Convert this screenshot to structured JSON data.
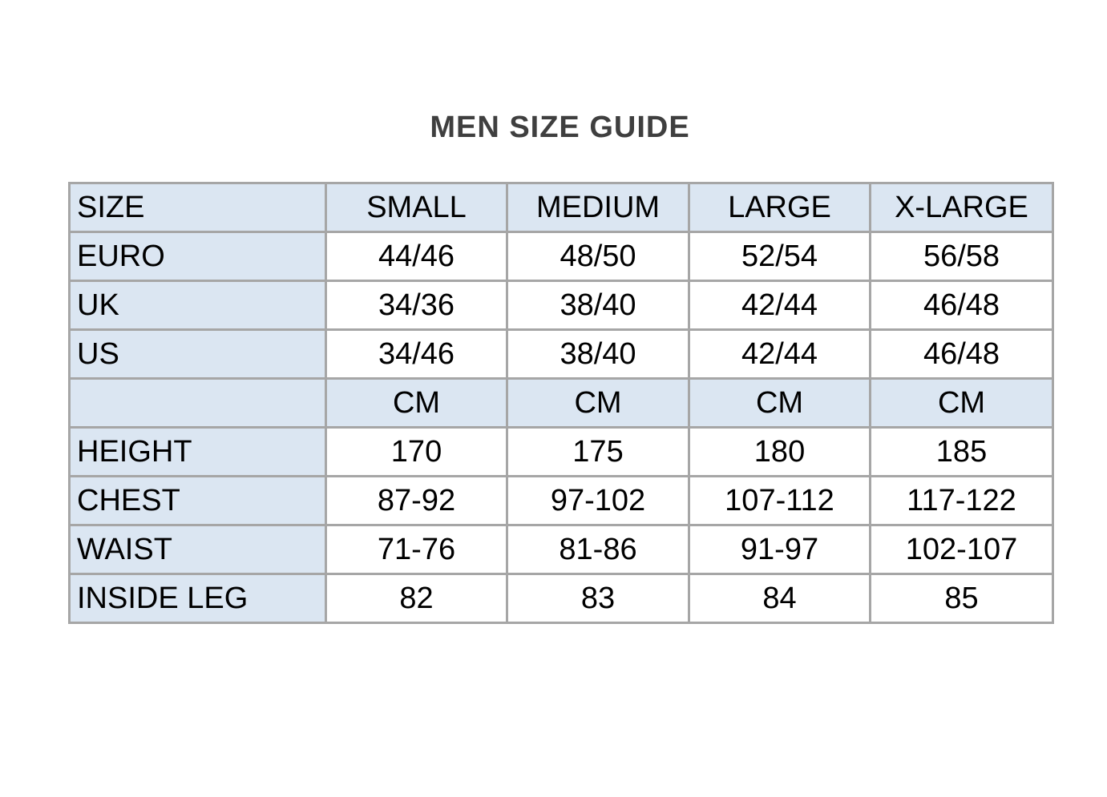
{
  "page": {
    "title": "MEN SIZE GUIDE"
  },
  "colors": {
    "header_fill": "#dbe6f2",
    "border": "#a6a6a6",
    "title_text": "#3f3f3f",
    "cell_text": "#000000",
    "background": "#ffffff"
  },
  "table": {
    "header": {
      "label": "SIZE",
      "cols": [
        "SMALL",
        "MEDIUM",
        "LARGE",
        "X-LARGE"
      ]
    },
    "rows": [
      {
        "label": "EURO",
        "kind": "data",
        "cells": [
          "44/46",
          "48/50",
          "52/54",
          "56/58"
        ]
      },
      {
        "label": "UK",
        "kind": "data",
        "cells": [
          "34/36",
          "38/40",
          "42/44",
          "46/48"
        ]
      },
      {
        "label": "US",
        "kind": "data",
        "cells": [
          "34/46",
          "38/40",
          "42/44",
          "46/48"
        ]
      },
      {
        "label": "",
        "kind": "subheader",
        "cells": [
          "CM",
          "CM",
          "CM",
          "CM"
        ]
      },
      {
        "label": "HEIGHT",
        "kind": "data",
        "cells": [
          "170",
          "175",
          "180",
          "185"
        ]
      },
      {
        "label": "CHEST",
        "kind": "data",
        "cells": [
          "87-92",
          "97-102",
          "107-112",
          "117-122"
        ]
      },
      {
        "label": "WAIST",
        "kind": "data",
        "cells": [
          "71-76",
          "81-86",
          "91-97",
          "102-107"
        ]
      },
      {
        "label": "INSIDE LEG",
        "kind": "data",
        "cells": [
          "82",
          "83",
          "84",
          "85"
        ]
      }
    ]
  }
}
